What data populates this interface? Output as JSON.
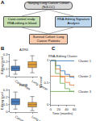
{
  "panel_labels": [
    "A",
    "B",
    "C"
  ],
  "diagram": {
    "nodes": [
      {
        "label": "Nanjing Lung Cancer Cohort (NJLCC)",
        "color": "#d9d9d9"
      },
      {
        "label": "Case-control study: RNA editing in blood",
        "color": "#c6e0b4"
      },
      {
        "label": "RNA-Editing Signature Analysis",
        "color": "#bdd7ee"
      },
      {
        "label": "Survival Cohort: Lung Cancer Patients",
        "color": "#f8cbad"
      }
    ]
  },
  "chart_data": [
    {
      "type": "box",
      "title": "AZIN1",
      "ylabel": "Editing level",
      "categories": [
        "Cancer-free",
        "Lung cancer"
      ],
      "colors": [
        "#4a7fc1",
        "#e8a33d"
      ],
      "q1": [
        0.08,
        0.12
      ],
      "median": [
        0.11,
        0.16
      ],
      "q3": [
        0.14,
        0.2
      ],
      "lowerfence": [
        0.03,
        0.05
      ],
      "upperfence": [
        0.22,
        0.28
      ],
      "ylim": [
        0,
        0.3
      ],
      "yticks": [
        0,
        0.1,
        0.2,
        0.3
      ]
    },
    {
      "type": "box",
      "title": "FLNB",
      "ylabel": "Editing level",
      "categories": [
        "Cancer-free",
        "Lung cancer"
      ],
      "colors": [
        "#4a7fc1",
        "#e8a33d"
      ],
      "q1": [
        0.1,
        0.07
      ],
      "median": [
        0.14,
        0.1
      ],
      "q3": [
        0.18,
        0.13
      ],
      "lowerfence": [
        0.04,
        0.02
      ],
      "upperfence": [
        0.27,
        0.21
      ],
      "ylim": [
        0,
        0.3
      ],
      "yticks": [
        0,
        0.1,
        0.2,
        0.3
      ]
    },
    {
      "type": "line",
      "title": "RNA-Editing Cluster",
      "xlabel": "Time (months)",
      "ylabel": "Survival",
      "x": [
        0,
        12,
        24,
        36,
        48,
        60
      ],
      "series": [
        {
          "name": "Cluster 1",
          "color": "#2b6cb0",
          "values": [
            1,
            0.88,
            0.76,
            0.68,
            0.62,
            0.58
          ]
        },
        {
          "name": "Cluster 2",
          "color": "#e07b39",
          "values": [
            1,
            0.8,
            0.62,
            0.5,
            0.44,
            0.4
          ]
        },
        {
          "name": "Cluster 3",
          "color": "#6aa84f",
          "values": [
            1,
            0.7,
            0.48,
            0.36,
            0.3,
            0.26
          ]
        }
      ],
      "xlim": [
        0,
        60
      ],
      "xticks": [
        0,
        20,
        40,
        60
      ],
      "ylim": [
        0,
        1
      ],
      "yticks": [
        0,
        0.5,
        1
      ],
      "legend": "lower left",
      "line_style": "step"
    }
  ]
}
